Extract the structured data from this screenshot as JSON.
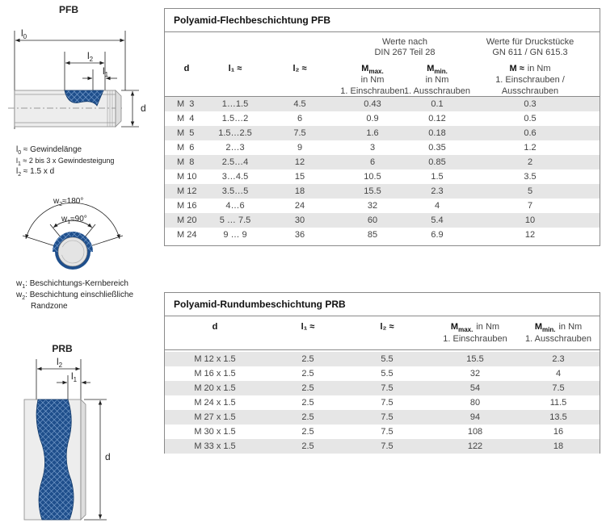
{
  "pfb": {
    "title": "PFB",
    "dim_l0": [
      "l",
      "0"
    ],
    "dim_l2": [
      "l",
      "2"
    ],
    "dim_l1": [
      "l",
      "1"
    ],
    "dim_d": "d",
    "legend": [
      {
        "sym": "l",
        "sub": "0",
        "text": " ≈ Gewindelänge"
      },
      {
        "sym": "l",
        "sub": "1",
        "text": " ≈ 2 bis 3 x Gewindesteigung"
      },
      {
        "sym": "l",
        "sub": "2",
        "text": " ≈  1.5 x d"
      }
    ]
  },
  "angles": {
    "w2": {
      "sym": "w",
      "sub": "2",
      "text": "≈180°"
    },
    "w1": {
      "sym": "w",
      "sub": "1",
      "text": "≈90°"
    },
    "legend": [
      {
        "sym": "w",
        "sub": "1",
        "lines": [
          ": Beschichtungs-Kernbereich"
        ]
      },
      {
        "sym": "w",
        "sub": "2",
        "lines": [
          ": Beschichtung einschließliche",
          "Randzone"
        ]
      }
    ]
  },
  "prb": {
    "title": "PRB",
    "dim_l2": [
      "l",
      "2"
    ],
    "dim_l1": [
      "l",
      "1"
    ],
    "dim_d": "d"
  },
  "table1": {
    "title": "Polyamid-Flechbeschichtung PFB",
    "headers": {
      "d": "d",
      "l1": "l₁ ≈",
      "l2": "l₂ ≈",
      "din": {
        "lines": [
          "Werte nach",
          "DIN 267 Teil 28"
        ],
        "mmax": {
          "sym": "M",
          "sub": "max.",
          "unit": "in Nm",
          "note": "1. Einschrauben"
        },
        "mmin": {
          "sym": "M",
          "sub": "min.",
          "unit": "in Nm",
          "note": "1. Ausschrauben"
        }
      },
      "gn": {
        "lines": [
          "Werte für Druckstücke",
          "GN 611 / GN 615.3"
        ],
        "m": {
          "sym": "M ≈",
          "unit": "in Nm",
          "note": [
            "1. Einschrauben /",
            "Ausschrauben"
          ]
        }
      }
    },
    "rows": [
      [
        "M  3",
        "1…1.5",
        "4.5",
        "0.43",
        "0.1",
        "0.3"
      ],
      [
        "M  4",
        "1.5…2",
        "6",
        "0.9",
        "0.12",
        "0.5"
      ],
      [
        "M  5",
        "1.5…2.5",
        "7.5",
        "1.6",
        "0.18",
        "0.6"
      ],
      [
        "M  6",
        "2…3",
        "9",
        "3",
        "0.35",
        "1.2"
      ],
      [
        "M  8",
        "2.5…4",
        "12",
        "6",
        "0.85",
        "2"
      ],
      [
        "M 10",
        "3…4.5",
        "15",
        "10.5",
        "1.5",
        "3.5"
      ],
      [
        "M 12",
        "3.5…5",
        "18",
        "15.5",
        "2.3",
        "5"
      ],
      [
        "M 16",
        "4…6",
        "24",
        "32",
        "4",
        "7"
      ],
      [
        "M 20",
        "5 … 7.5",
        "30",
        "60",
        "5.4",
        "10"
      ],
      [
        "M 24",
        "9 … 9",
        "36",
        "85",
        "6.9",
        "12"
      ]
    ]
  },
  "table2": {
    "title": "Polyamid-Rundumbeschichtung PRB",
    "headers": {
      "d": "d",
      "l1": "l₁ ≈",
      "l2": "l₂ ≈",
      "mmax": {
        "sym": "M",
        "sub": "max.",
        "unit": "in Nm",
        "note": "1. Einschrauben"
      },
      "mmin": {
        "sym": "M",
        "sub": "min.",
        "unit": "in Nm",
        "note": "1. Ausschrauben"
      }
    },
    "rows": [
      [
        "M 12 x 1.5",
        "2.5",
        "5.5",
        "15.5",
        "2.3"
      ],
      [
        "M 16 x 1.5",
        "2.5",
        "5.5",
        "32",
        "4"
      ],
      [
        "M 20 x 1.5",
        "2.5",
        "7.5",
        "54",
        "7.5"
      ],
      [
        "M 24 x 1.5",
        "2.5",
        "7.5",
        "80",
        "11.5"
      ],
      [
        "M 27 x 1.5",
        "2.5",
        "7.5",
        "94",
        "13.5"
      ],
      [
        "M 30 x 1.5",
        "2.5",
        "7.5",
        "108",
        "16"
      ],
      [
        "M 33 x 1.5",
        "2.5",
        "7.5",
        "122",
        "18"
      ]
    ]
  }
}
